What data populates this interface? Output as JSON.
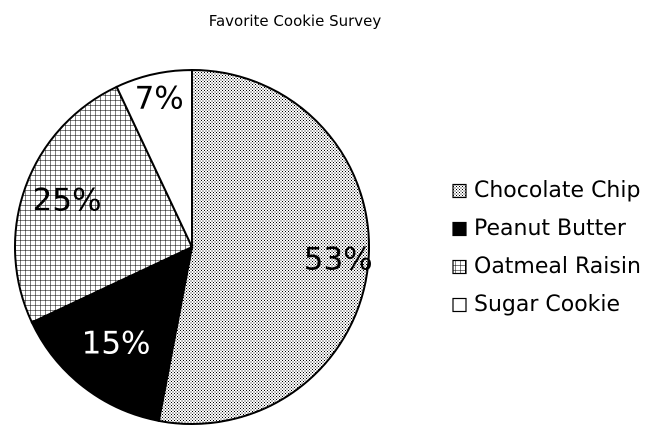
{
  "chart_data": {
    "type": "pie",
    "title": "Favorite Cookie Survey",
    "slices": [
      {
        "label": "Chocolate Chip",
        "value": 53,
        "display": "53%",
        "pattern": "dots",
        "color": "#ffffff"
      },
      {
        "label": "Peanut Butter",
        "value": 15,
        "display": "15%",
        "pattern": "solid",
        "color": "#000000"
      },
      {
        "label": "Oatmeal Raisin",
        "value": 25,
        "display": "25%",
        "pattern": "grid",
        "color": "#ffffff"
      },
      {
        "label": "Sugar Cookie",
        "value": 7,
        "display": "7%",
        "pattern": "none",
        "color": "#ffffff"
      }
    ],
    "legend": {
      "position": "right"
    }
  }
}
